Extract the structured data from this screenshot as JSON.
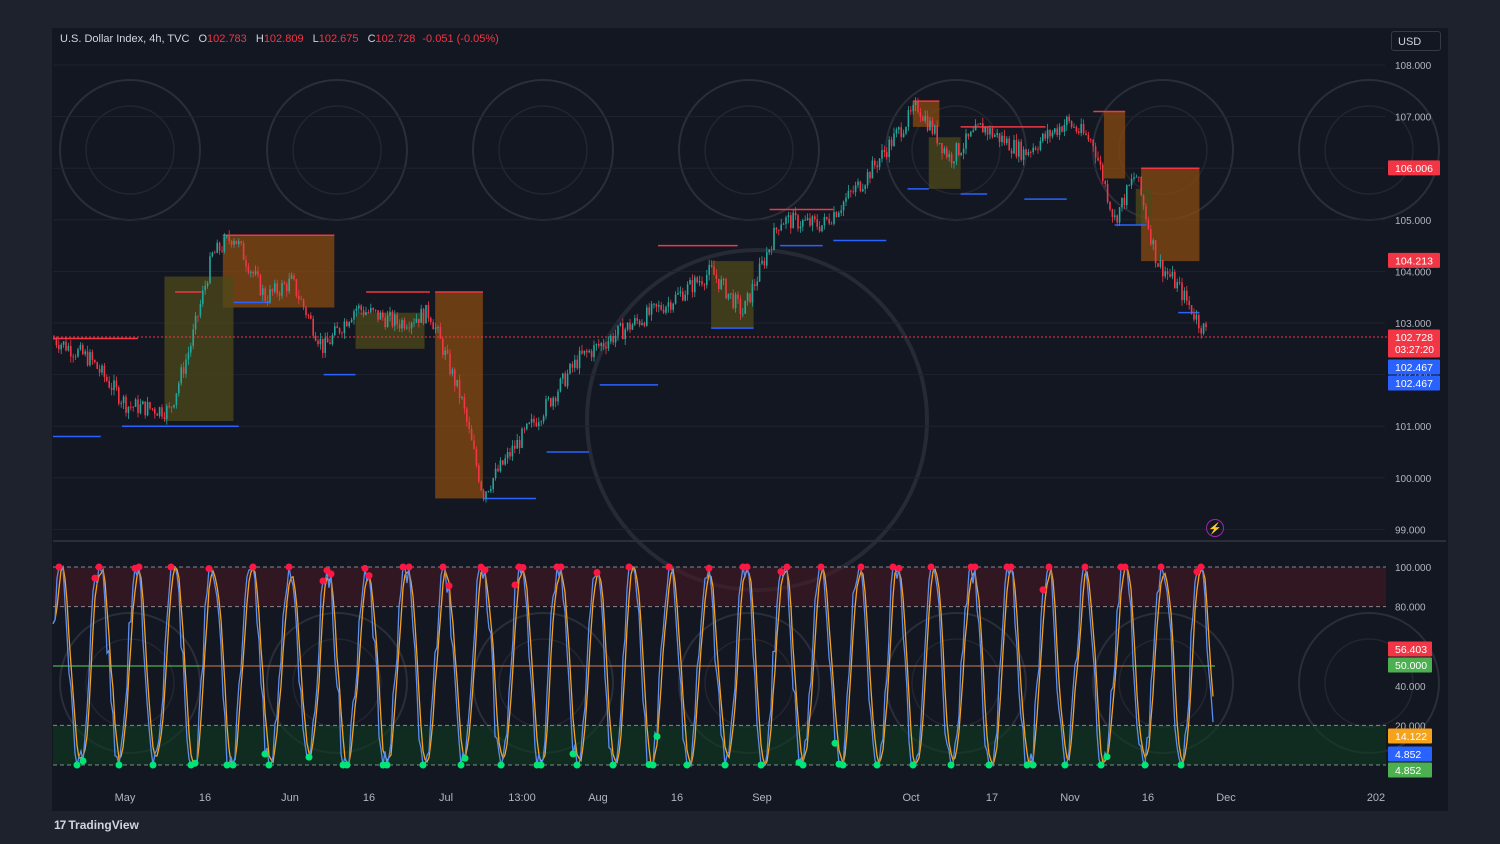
{
  "header": {
    "symbol": "U.S. Dollar Index, 4h, TVC",
    "open_label": "O",
    "open": "102.783",
    "high_label": "H",
    "high": "102.809",
    "low_label": "L",
    "low": "102.675",
    "close_label": "C",
    "close": "102.728",
    "change": "-0.051 (-0.05%)"
  },
  "currency": "USD",
  "branding": "TradingView",
  "colors": {
    "background": "#131722",
    "up": "#26a69a",
    "down": "#f23645",
    "resistance": "#f23645",
    "support": "#2962ff",
    "fill_orange": "#8a4b12",
    "fill_olive": "#4d4a1a",
    "k_line": "#5b8def",
    "d_line": "#f7a21b"
  },
  "chart_data": [
    {
      "type": "candlestick",
      "title": "U.S. Dollar Index, 4h, TVC",
      "ylim": [
        99.0,
        108.0
      ],
      "y_ticks": [
        "108.000",
        "107.000",
        "106.000",
        "105.000",
        "104.000",
        "103.000",
        "102.000",
        "101.000",
        "100.000",
        "99.000"
      ],
      "x_ticks": [
        "May",
        "16",
        "Jun",
        "16",
        "Jul",
        "13:00",
        "Aug",
        "16",
        "Sep",
        "Oct",
        "17",
        "Nov",
        "16",
        "Dec",
        "202"
      ],
      "approx_path": [
        {
          "t": "Apr 24",
          "y": 102.7
        },
        {
          "t": "May 1",
          "y": 102.3
        },
        {
          "t": "May 8",
          "y": 101.4
        },
        {
          "t": "May 16",
          "y": 101.3
        },
        {
          "t": "May 20",
          "y": 102.6
        },
        {
          "t": "May 24",
          "y": 104.3
        },
        {
          "t": "May 28",
          "y": 104.7
        },
        {
          "t": "Jun 3",
          "y": 103.5
        },
        {
          "t": "Jun 8",
          "y": 103.8
        },
        {
          "t": "Jun 14",
          "y": 102.5
        },
        {
          "t": "Jun 20",
          "y": 103.3
        },
        {
          "t": "Jun 28",
          "y": 103.0
        },
        {
          "t": "Jul 4",
          "y": 103.2
        },
        {
          "t": "Jul 10",
          "y": 101.5
        },
        {
          "t": "Jul 14",
          "y": 99.7
        },
        {
          "t": "Jul 20",
          "y": 100.6
        },
        {
          "t": "Jul 26",
          "y": 101.4
        },
        {
          "t": "Aug 1",
          "y": 102.3
        },
        {
          "t": "Aug 10",
          "y": 102.9
        },
        {
          "t": "Aug 18",
          "y": 103.4
        },
        {
          "t": "Aug 26",
          "y": 104.0
        },
        {
          "t": "Sep 1",
          "y": 103.2
        },
        {
          "t": "Sep 8",
          "y": 105.0
        },
        {
          "t": "Sep 16",
          "y": 104.9
        },
        {
          "t": "Sep 24",
          "y": 105.8
        },
        {
          "t": "Oct 1",
          "y": 106.8
        },
        {
          "t": "Oct 4",
          "y": 107.2
        },
        {
          "t": "Oct 10",
          "y": 106.2
        },
        {
          "t": "Oct 16",
          "y": 106.8
        },
        {
          "t": "Oct 24",
          "y": 106.3
        },
        {
          "t": "Nov 1",
          "y": 106.9
        },
        {
          "t": "Nov 6",
          "y": 106.5
        },
        {
          "t": "Nov 10",
          "y": 105.0
        },
        {
          "t": "Nov 14",
          "y": 105.9
        },
        {
          "t": "Nov 18",
          "y": 104.2
        },
        {
          "t": "Nov 22",
          "y": 103.7
        },
        {
          "t": "Nov 26",
          "y": 103.0
        },
        {
          "t": "Nov 28",
          "y": 102.728
        }
      ],
      "price_labels": [
        {
          "value": "106.006",
          "kind": "resistance"
        },
        {
          "value": "104.213",
          "kind": "resistance"
        },
        {
          "value": "102.728",
          "kind": "last",
          "countdown": "03:27:20"
        },
        {
          "value": "102.467",
          "kind": "support"
        },
        {
          "value": "102.467",
          "kind": "support"
        }
      ],
      "last_price": 102.728
    },
    {
      "type": "line",
      "title": "Stochastic Oscillator",
      "ylim": [
        0,
        100
      ],
      "y_ticks": [
        "100.000",
        "80.000",
        "40.000",
        "20.000"
      ],
      "levels": [
        100,
        80,
        50,
        20,
        0
      ],
      "series": [
        {
          "color": "#5b8def"
        },
        {
          "color": "#f7a21b"
        }
      ],
      "value_labels": [
        {
          "value": "56.403",
          "color": "#f23645"
        },
        {
          "value": "50.000",
          "color": "#4caf50"
        },
        {
          "value": "14.122",
          "color": "#f7a21b"
        },
        {
          "value": "4.852",
          "color": "#2962ff"
        },
        {
          "value": "4.852",
          "color": "#4caf50"
        }
      ]
    }
  ]
}
